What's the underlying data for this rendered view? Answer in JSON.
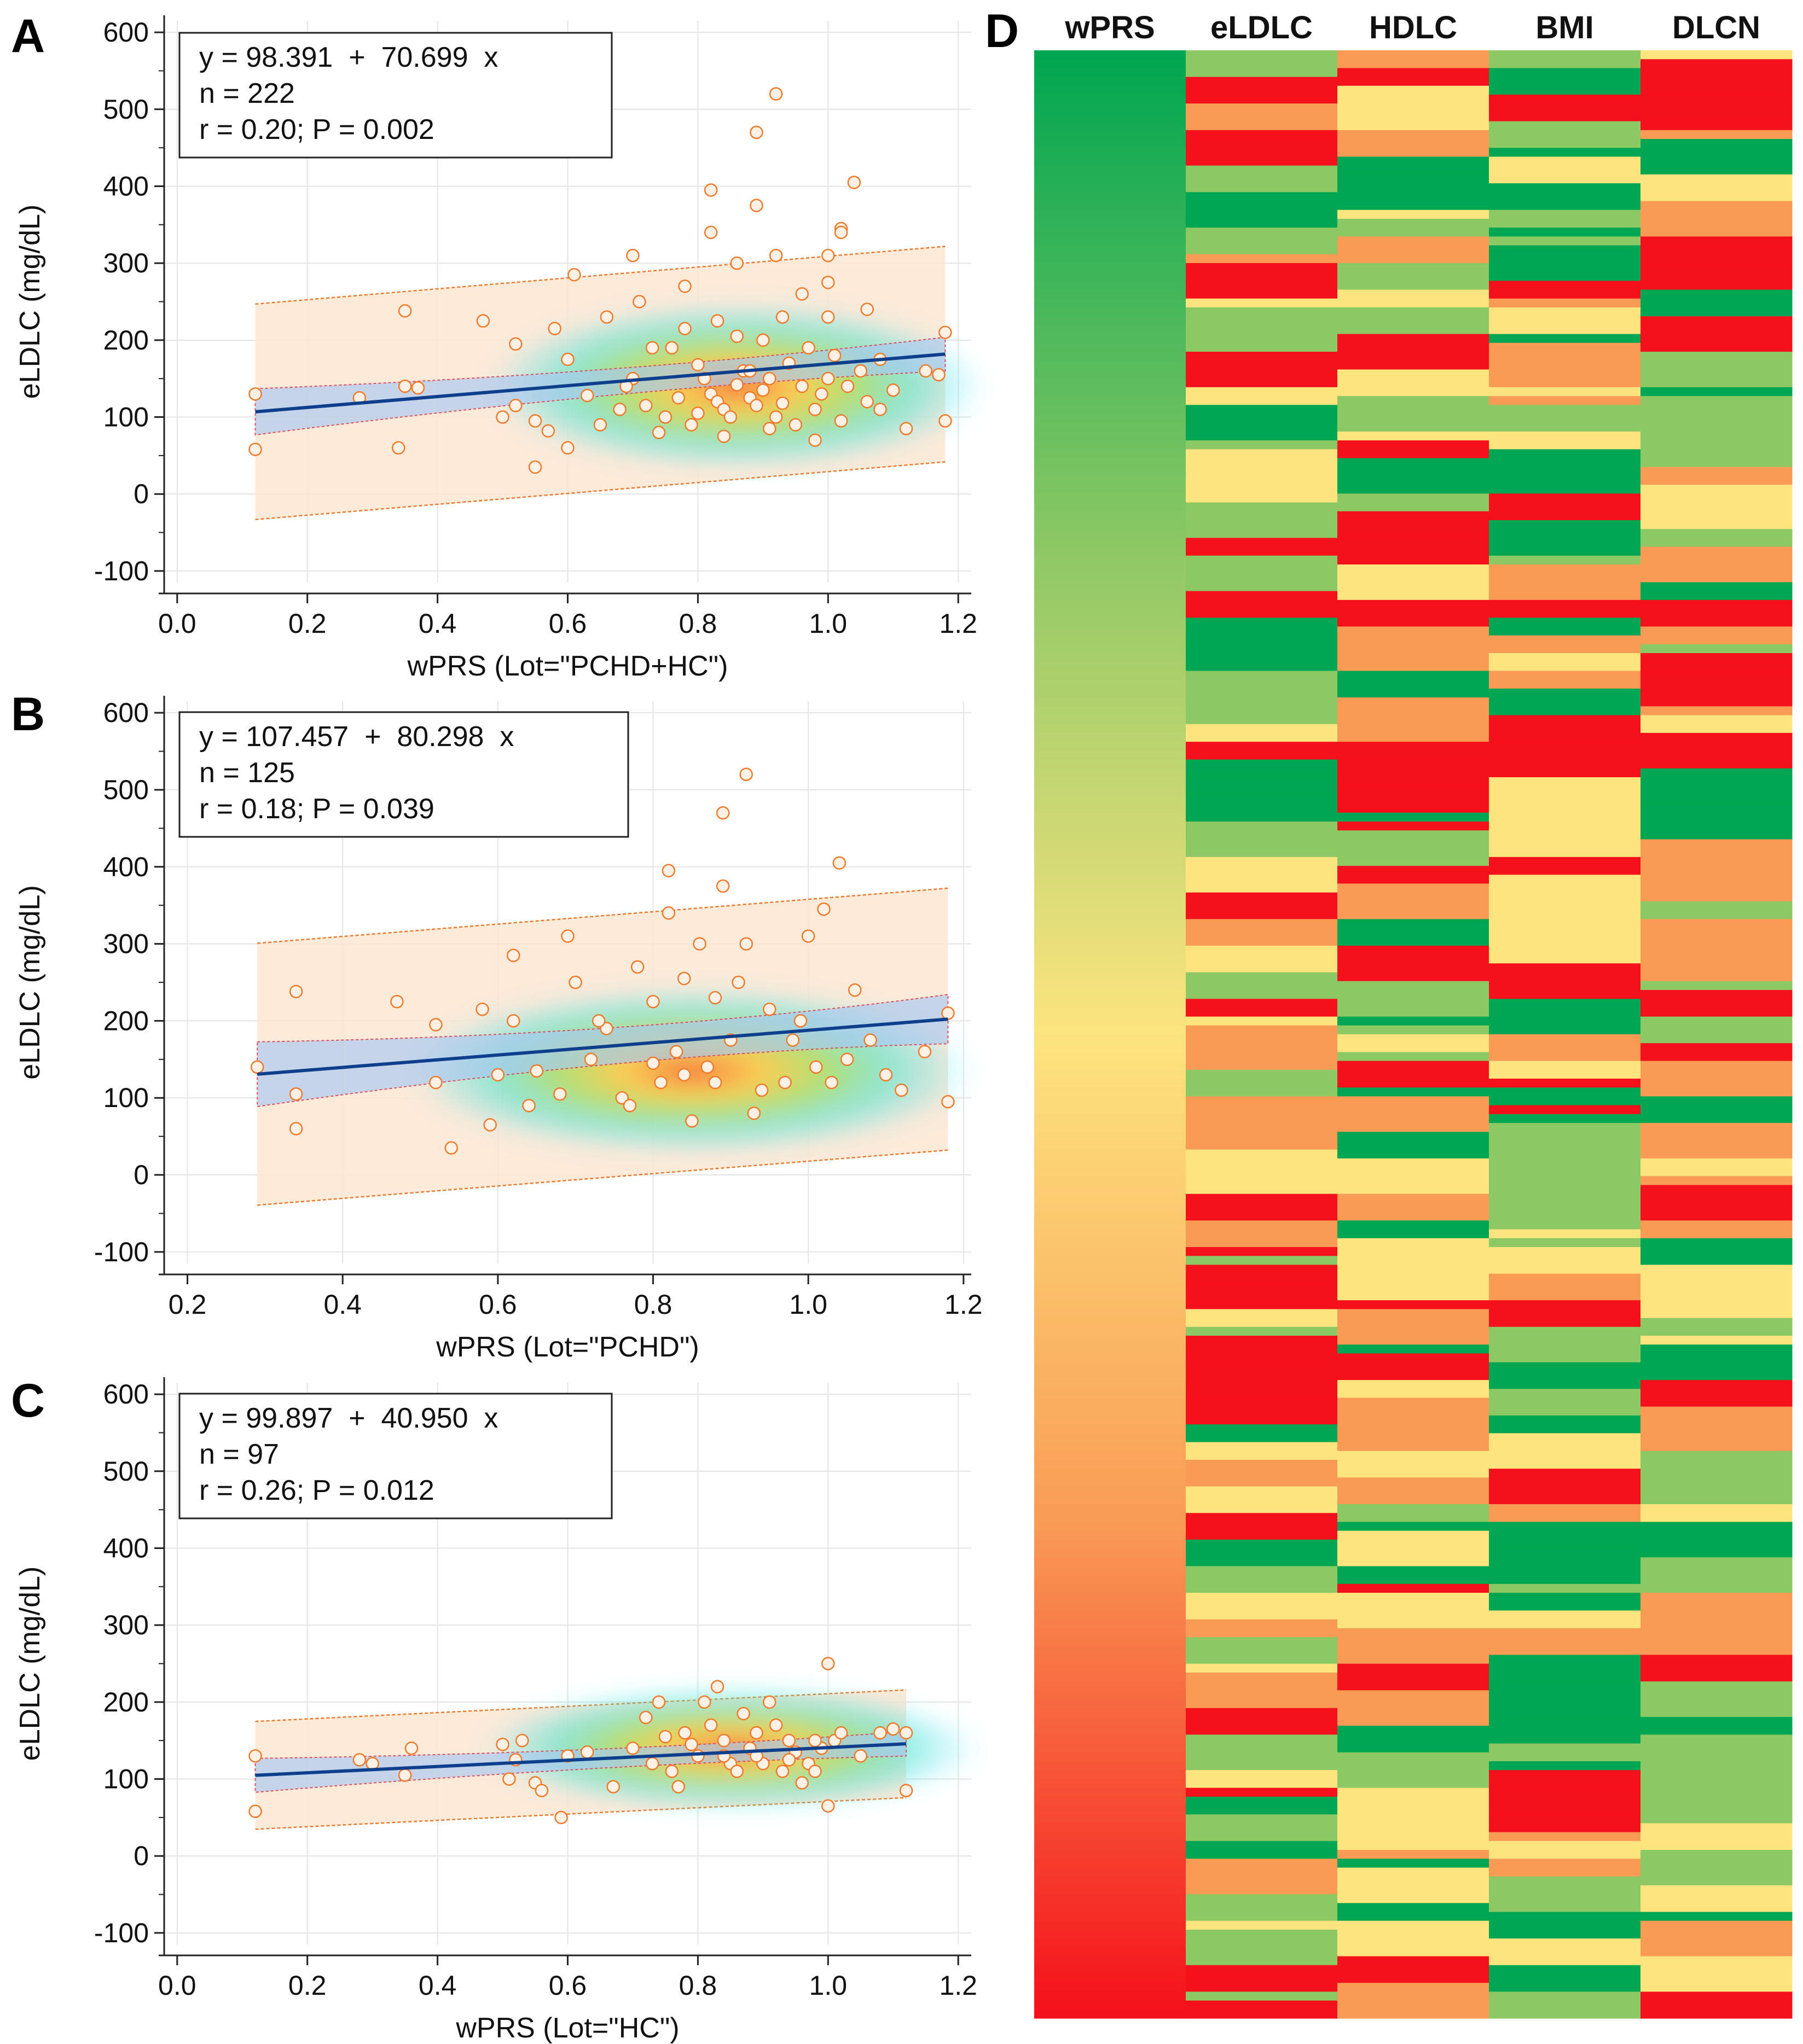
{
  "colors": {
    "band_fill": "#fde6d2",
    "band_edge": "#f07a2a",
    "ci_fill": "#a8c8f0",
    "ci_edge": "#e0505c",
    "fit_line": "#0d3f8c",
    "point_fill": "#fdf1e6",
    "point_edge": "#f07a2a",
    "grid": "#e4e4e4",
    "axis": "#222222",
    "green": "#00a651",
    "light_green": "#8cc864",
    "yellow": "#fde47f",
    "orange": "#f99b55",
    "red": "#f5111b"
  },
  "chart_data": [
    {
      "type": "scatter",
      "panel_label": "A",
      "xlabel": "wPRS (Lot=\"PCHD+HC\")",
      "ylabel": "eLDLC (mg/dL)",
      "xlim": [
        -0.02,
        1.22
      ],
      "ylim": [
        -115,
        615
      ],
      "xticks": [
        "0.0",
        "0.2",
        "0.4",
        "0.6",
        "0.8",
        "1.0",
        "1.2"
      ],
      "xtick_values": [
        0.0,
        0.2,
        0.4,
        0.6,
        0.8,
        1.0,
        1.2
      ],
      "yticks": [
        "-100",
        "0",
        "100",
        "200",
        "300",
        "400",
        "500",
        "600"
      ],
      "ytick_values": [
        -100,
        0,
        100,
        200,
        300,
        400,
        500,
        600
      ],
      "stats": [
        "y = 98.391  +  70.699  x",
        "n = 222",
        "r = 0.20; P = 0.002"
      ],
      "intercept": 98.391,
      "slope": 70.699,
      "x_range": [
        0.12,
        1.18
      ],
      "prediction_offset": 140,
      "ci_halfwidth": [
        30,
        8,
        22
      ],
      "density_center": [
        0.86,
        140
      ],
      "points": [
        [
          0.12,
          130
        ],
        [
          0.12,
          58
        ],
        [
          0.28,
          125
        ],
        [
          0.35,
          140
        ],
        [
          0.35,
          238
        ],
        [
          0.34,
          60
        ],
        [
          0.37,
          138
        ],
        [
          0.47,
          225
        ],
        [
          0.52,
          195
        ],
        [
          0.55,
          35
        ],
        [
          0.58,
          215
        ],
        [
          0.6,
          175
        ],
        [
          0.61,
          285
        ],
        [
          0.63,
          128
        ],
        [
          0.5,
          100
        ],
        [
          0.52,
          115
        ],
        [
          0.55,
          95
        ],
        [
          0.57,
          82
        ],
        [
          0.6,
          60
        ],
        [
          0.65,
          90
        ],
        [
          0.68,
          110
        ],
        [
          0.7,
          150
        ],
        [
          0.72,
          115
        ],
        [
          0.74,
          80
        ],
        [
          0.76,
          190
        ],
        [
          0.78,
          215
        ],
        [
          0.8,
          168
        ],
        [
          0.81,
          150
        ],
        [
          0.82,
          130
        ],
        [
          0.83,
          120
        ],
        [
          0.84,
          110
        ],
        [
          0.85,
          100
        ],
        [
          0.86,
          142
        ],
        [
          0.87,
          160
        ],
        [
          0.88,
          125
        ],
        [
          0.89,
          115
        ],
        [
          0.9,
          135
        ],
        [
          0.91,
          150
        ],
        [
          0.92,
          100
        ],
        [
          0.93,
          118
        ],
        [
          0.94,
          170
        ],
        [
          0.95,
          90
        ],
        [
          0.96,
          140
        ],
        [
          0.97,
          190
        ],
        [
          0.98,
          110
        ],
        [
          0.99,
          130
        ],
        [
          1.0,
          150
        ],
        [
          1.01,
          180
        ],
        [
          1.02,
          95
        ],
        [
          1.03,
          140
        ],
        [
          1.05,
          160
        ],
        [
          1.06,
          120
        ],
        [
          1.08,
          175
        ],
        [
          1.1,
          135
        ],
        [
          1.12,
          85
        ],
        [
          1.15,
          160
        ],
        [
          1.17,
          155
        ],
        [
          1.18,
          210
        ],
        [
          1.18,
          95
        ],
        [
          0.7,
          310
        ],
        [
          0.78,
          270
        ],
        [
          0.82,
          395
        ],
        [
          0.82,
          340
        ],
        [
          0.86,
          300
        ],
        [
          0.89,
          470
        ],
        [
          0.89,
          375
        ],
        [
          0.92,
          520
        ],
        [
          0.92,
          310
        ],
        [
          1.0,
          310
        ],
        [
          1.02,
          345
        ],
        [
          1.02,
          340
        ],
        [
          1.04,
          405
        ],
        [
          1.06,
          240
        ],
        [
          0.66,
          230
        ],
        [
          0.71,
          250
        ],
        [
          0.75,
          100
        ],
        [
          0.79,
          90
        ],
        [
          0.84,
          75
        ],
        [
          0.88,
          160
        ],
        [
          0.9,
          200
        ],
        [
          0.96,
          260
        ],
        [
          1.0,
          275
        ],
        [
          0.73,
          190
        ],
        [
          0.8,
          105
        ],
        [
          0.86,
          205
        ],
        [
          0.93,
          230
        ],
        [
          0.98,
          70
        ],
        [
          0.69,
          140
        ],
        [
          0.77,
          125
        ],
        [
          0.83,
          225
        ],
        [
          0.91,
          85
        ],
        [
          1.0,
          230
        ],
        [
          1.08,
          110
        ]
      ]
    },
    {
      "type": "scatter",
      "panel_label": "B",
      "xlabel": "wPRS (Lot=\"PCHD\")",
      "ylabel": "eLDLC (mg/dL)",
      "xlim": [
        0.17,
        1.21
      ],
      "ylim": [
        -115,
        615
      ],
      "xticks": [
        "0.2",
        "0.4",
        "0.6",
        "0.8",
        "1.0",
        "1.2"
      ],
      "xtick_values": [
        0.2,
        0.4,
        0.6,
        0.8,
        1.0,
        1.2
      ],
      "yticks": [
        "-100",
        "0",
        "100",
        "200",
        "300",
        "400",
        "500",
        "600"
      ],
      "ytick_values": [
        -100,
        0,
        100,
        200,
        300,
        400,
        500,
        600
      ],
      "stats": [
        "y = 107.457  +  80.298  x",
        "n = 125",
        "r = 0.18; P = 0.039"
      ],
      "intercept": 107.457,
      "slope": 80.298,
      "x_range": [
        0.29,
        1.18
      ],
      "prediction_offset": 170,
      "ci_halfwidth": [
        42,
        10,
        32
      ],
      "density_center": [
        0.85,
        135
      ],
      "points": [
        [
          0.29,
          140
        ],
        [
          0.34,
          238
        ],
        [
          0.34,
          105
        ],
        [
          0.34,
          60
        ],
        [
          0.47,
          225
        ],
        [
          0.52,
          195
        ],
        [
          0.52,
          120
        ],
        [
          0.54,
          35
        ],
        [
          0.58,
          215
        ],
        [
          0.59,
          65
        ],
        [
          0.62,
          285
        ],
        [
          0.62,
          200
        ],
        [
          0.65,
          135
        ],
        [
          0.69,
          310
        ],
        [
          0.7,
          250
        ],
        [
          0.72,
          150
        ],
        [
          0.74,
          190
        ],
        [
          0.76,
          100
        ],
        [
          0.78,
          270
        ],
        [
          0.8,
          225
        ],
        [
          0.8,
          145
        ],
        [
          0.81,
          120
        ],
        [
          0.82,
          395
        ],
        [
          0.82,
          340
        ],
        [
          0.83,
          160
        ],
        [
          0.84,
          130
        ],
        [
          0.85,
          70
        ],
        [
          0.86,
          300
        ],
        [
          0.87,
          140
        ],
        [
          0.88,
          120
        ],
        [
          0.89,
          470
        ],
        [
          0.89,
          375
        ],
        [
          0.9,
          175
        ],
        [
          0.91,
          250
        ],
        [
          0.92,
          520
        ],
        [
          0.92,
          300
        ],
        [
          0.94,
          110
        ],
        [
          0.95,
          215
        ],
        [
          0.97,
          120
        ],
        [
          0.99,
          200
        ],
        [
          1.0,
          310
        ],
        [
          1.01,
          140
        ],
        [
          1.02,
          345
        ],
        [
          1.04,
          405
        ],
        [
          1.05,
          150
        ],
        [
          1.06,
          240
        ],
        [
          1.08,
          175
        ],
        [
          1.1,
          130
        ],
        [
          1.12,
          110
        ],
        [
          1.15,
          160
        ],
        [
          1.18,
          210
        ],
        [
          1.18,
          95
        ],
        [
          0.6,
          130
        ],
        [
          0.64,
          90
        ],
        [
          0.68,
          105
        ],
        [
          0.73,
          200
        ],
        [
          0.77,
          90
        ],
        [
          0.84,
          255
        ],
        [
          0.88,
          230
        ],
        [
          0.93,
          80
        ],
        [
          0.98,
          175
        ],
        [
          1.03,
          120
        ]
      ]
    },
    {
      "type": "scatter",
      "panel_label": "C",
      "xlabel": "wPRS (Lot=\"HC\")",
      "ylabel": "eLDLC (mg/dL)",
      "xlim": [
        -0.02,
        1.22
      ],
      "ylim": [
        -115,
        615
      ],
      "xticks": [
        "0.0",
        "0.2",
        "0.4",
        "0.6",
        "0.8",
        "1.0",
        "1.2"
      ],
      "xtick_values": [
        0.0,
        0.2,
        0.4,
        0.6,
        0.8,
        1.0,
        1.2
      ],
      "yticks": [
        "-100",
        "0",
        "100",
        "200",
        "300",
        "400",
        "500",
        "600"
      ],
      "ytick_values": [
        -100,
        0,
        100,
        200,
        300,
        400,
        500,
        600
      ],
      "stats": [
        "y = 99.897  +  40.950  x",
        "n = 97",
        "r = 0.26; P = 0.012"
      ],
      "intercept": 99.897,
      "slope": 40.95,
      "x_range": [
        0.12,
        1.12
      ],
      "prediction_offset": 70,
      "ci_halfwidth": [
        22,
        6,
        16
      ],
      "density_center": [
        0.85,
        140
      ],
      "points": [
        [
          0.12,
          130
        ],
        [
          0.12,
          58
        ],
        [
          0.28,
          125
        ],
        [
          0.3,
          120
        ],
        [
          0.35,
          105
        ],
        [
          0.36,
          140
        ],
        [
          0.5,
          145
        ],
        [
          0.51,
          100
        ],
        [
          0.52,
          125
        ],
        [
          0.53,
          150
        ],
        [
          0.55,
          95
        ],
        [
          0.56,
          85
        ],
        [
          0.59,
          50
        ],
        [
          0.6,
          130
        ],
        [
          0.63,
          135
        ],
        [
          0.67,
          90
        ],
        [
          0.7,
          140
        ],
        [
          0.72,
          180
        ],
        [
          0.74,
          200
        ],
        [
          0.76,
          110
        ],
        [
          0.77,
          90
        ],
        [
          0.78,
          160
        ],
        [
          0.79,
          145
        ],
        [
          0.8,
          130
        ],
        [
          0.81,
          200
        ],
        [
          0.82,
          170
        ],
        [
          0.83,
          220
        ],
        [
          0.84,
          150
        ],
        [
          0.85,
          120
        ],
        [
          0.86,
          110
        ],
        [
          0.87,
          185
        ],
        [
          0.88,
          140
        ],
        [
          0.89,
          160
        ],
        [
          0.9,
          120
        ],
        [
          0.91,
          200
        ],
        [
          0.92,
          170
        ],
        [
          0.93,
          110
        ],
        [
          0.94,
          150
        ],
        [
          0.95,
          135
        ],
        [
          0.96,
          95
        ],
        [
          0.97,
          120
        ],
        [
          0.98,
          110
        ],
        [
          0.99,
          140
        ],
        [
          1.0,
          250
        ],
        [
          1.0,
          65
        ],
        [
          1.01,
          150
        ],
        [
          1.02,
          160
        ],
        [
          1.05,
          130
        ],
        [
          1.08,
          160
        ],
        [
          1.1,
          165
        ],
        [
          1.12,
          160
        ],
        [
          1.12,
          85
        ],
        [
          0.73,
          120
        ],
        [
          0.75,
          155
        ],
        [
          0.84,
          130
        ],
        [
          0.89,
          130
        ],
        [
          0.94,
          125
        ],
        [
          0.98,
          150
        ]
      ]
    },
    {
      "type": "heatmap",
      "panel_label": "D",
      "columns": [
        "wPRS",
        "eLDLC",
        "HDLC",
        "BMI",
        "DLCN"
      ],
      "rows": 222,
      "color_scale": [
        "#00a651",
        "#8cc864",
        "#fde47f",
        "#f99b55",
        "#f5111b"
      ],
      "row_order": "sorted by wPRS descending (green to red)"
    }
  ]
}
